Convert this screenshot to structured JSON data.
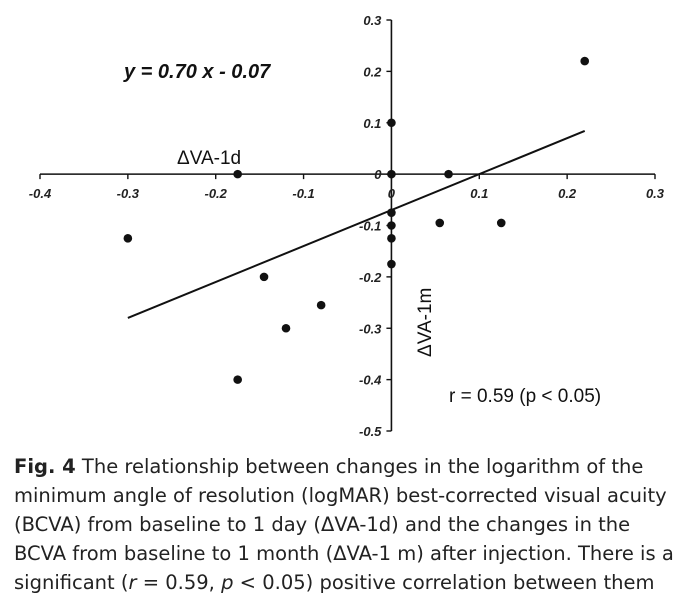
{
  "chart_data": {
    "type": "scatter",
    "title": "",
    "xlabel": "ΔVA-1d",
    "ylabel": "ΔVA-1m",
    "xlim": [
      -0.4,
      0.3
    ],
    "ylim": [
      -0.5,
      0.3
    ],
    "x_ticks": [
      "-0.4",
      "-0.3",
      "-0.2",
      "-0.1",
      "0",
      "0.1",
      "0.2",
      "0.3"
    ],
    "y_ticks": [
      "0.3",
      "0.2",
      "0.1",
      "0",
      "-0.1",
      "-0.2",
      "-0.3",
      "-0.4",
      "-0.5"
    ],
    "points": [
      {
        "x": -0.3,
        "y": -0.125
      },
      {
        "x": -0.175,
        "y": 0.0
      },
      {
        "x": -0.175,
        "y": -0.4
      },
      {
        "x": -0.145,
        "y": -0.2
      },
      {
        "x": -0.12,
        "y": -0.3
      },
      {
        "x": -0.08,
        "y": -0.255
      },
      {
        "x": 0.0,
        "y": 0.1
      },
      {
        "x": 0.0,
        "y": 0.0
      },
      {
        "x": 0.0,
        "y": -0.075
      },
      {
        "x": 0.0,
        "y": -0.1
      },
      {
        "x": 0.0,
        "y": -0.125
      },
      {
        "x": 0.0,
        "y": -0.175
      },
      {
        "x": 0.055,
        "y": -0.095
      },
      {
        "x": 0.065,
        "y": 0.0
      },
      {
        "x": 0.125,
        "y": -0.095
      },
      {
        "x": 0.22,
        "y": 0.22
      }
    ],
    "regression": {
      "slope": 0.7,
      "intercept": -0.07,
      "x_range": [
        -0.3,
        0.22
      ]
    },
    "equation": "y = 0.70 x - 0.07",
    "stat_text": "r = 0.59 (p < 0.05)",
    "grid": false,
    "legend": "none"
  },
  "caption": {
    "fig_label": "Fig. 4",
    "part1": " The relationship between changes in the logarithm of the minimum angle of resolution (logMAR) best-corrected visual acuity (BCVA) from baseline to 1 day (ΔVA-1d) and the changes in the BCVA from baseline to 1 month (ΔVA-1 m) after injection. There is a significant (",
    "r_symbol": "r",
    "part2": " = 0.59, ",
    "p_symbol": "p",
    "part3": " < 0.05) positive correlation between them"
  }
}
